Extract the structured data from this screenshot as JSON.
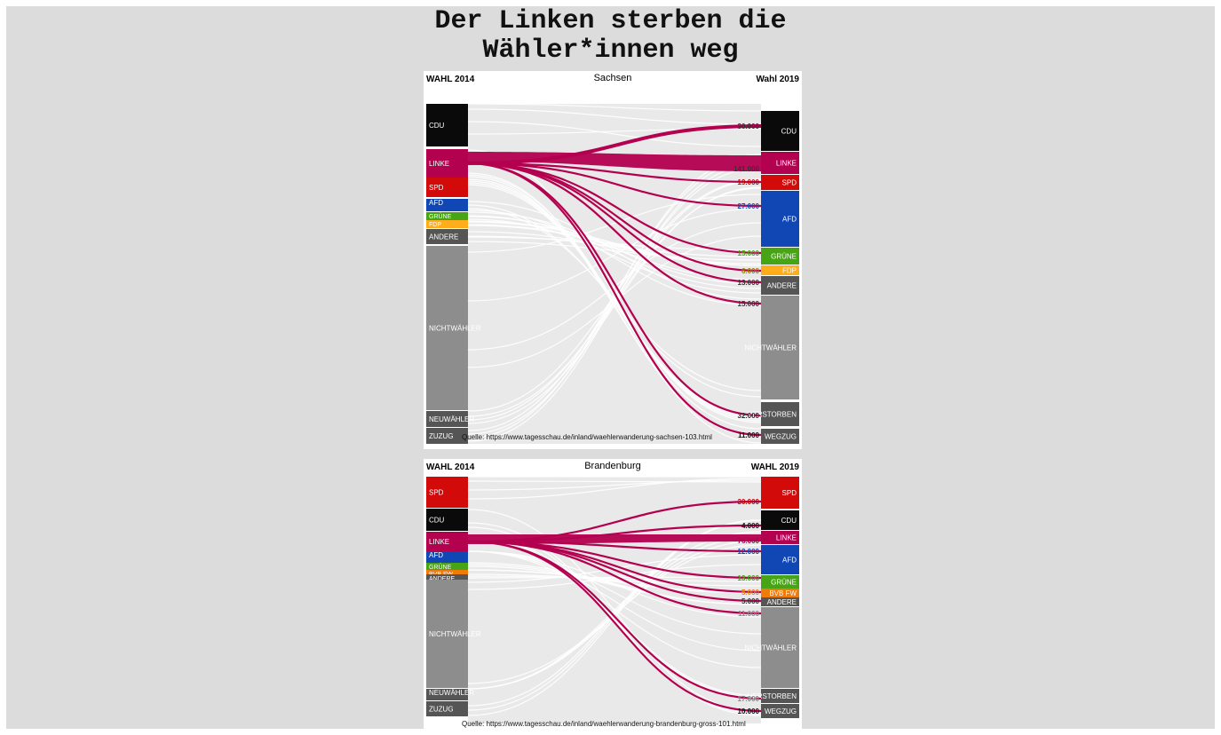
{
  "title_line1": "Der Linken sterben die",
  "title_line2": "Wähler*innen weg",
  "colors": {
    "linke": "#b3004f",
    "cdu": "#0a0a0a",
    "spd": "#d30a0a",
    "afd": "#1147b5",
    "gruene": "#46a415",
    "fdp": "#ffad1a",
    "bvb": "#f07a0a",
    "andere": "#555555",
    "nicht": "#8d8d8d",
    "neu": "#555555",
    "flow": "#cfcfcf"
  },
  "sachsen": {
    "header_left": "WAHL 2014",
    "header_center": "Sachsen",
    "header_right": "Wahl 2019",
    "source": "Quelle: https://www.tagesschau.de/inland/waehlerwanderung-sachsen-103.html",
    "left_parties": [
      "CDU",
      "LINKE",
      "SPD",
      "AFD",
      "GRÜNE",
      "FDP",
      "ANDERE",
      "NICHTWÄHLER",
      "NEUWÄHLER",
      "ZUZUG"
    ],
    "right_parties": [
      "CDU",
      "LINKE",
      "SPD",
      "AFD",
      "GRÜNE",
      "FDP",
      "ANDERE",
      "NICHTWÄHLER",
      "VERSTORBEN",
      "WEGZUG"
    ],
    "flow_values": [
      "30.000",
      "141.000",
      "19.000",
      "27.000",
      "15.000",
      "6.000",
      "13.000",
      "15.000",
      "32.000",
      "11.000"
    ]
  },
  "brandenburg": {
    "header_left": "WAHL 2014",
    "header_center": "Brandenburg",
    "header_right": "WAHL 2019",
    "source": "Quelle: https://www.tagesschau.de/inland/waehlerwanderung-brandenburg-gross-101.html",
    "left_parties": [
      "SPD",
      "CDU",
      "LINKE",
      "AFD",
      "GRÜNE",
      "BVB FW",
      "ANDERE",
      "NICHTWÄHLER",
      "NEUWÄHLER",
      "ZUZUG"
    ],
    "right_parties": [
      "SPD",
      "CDU",
      "LINKE",
      "AFD",
      "GRÜNE",
      "BVB FW",
      "ANDERE",
      "NICHTWÄHLER",
      "VERSTORBEN",
      "WEGZUG"
    ],
    "flow_values": [
      "30.000",
      "4.000",
      "76.000",
      "12.000",
      "13.000",
      "5.000",
      "5.000",
      "11.000",
      "17.000",
      "10.000"
    ]
  }
}
